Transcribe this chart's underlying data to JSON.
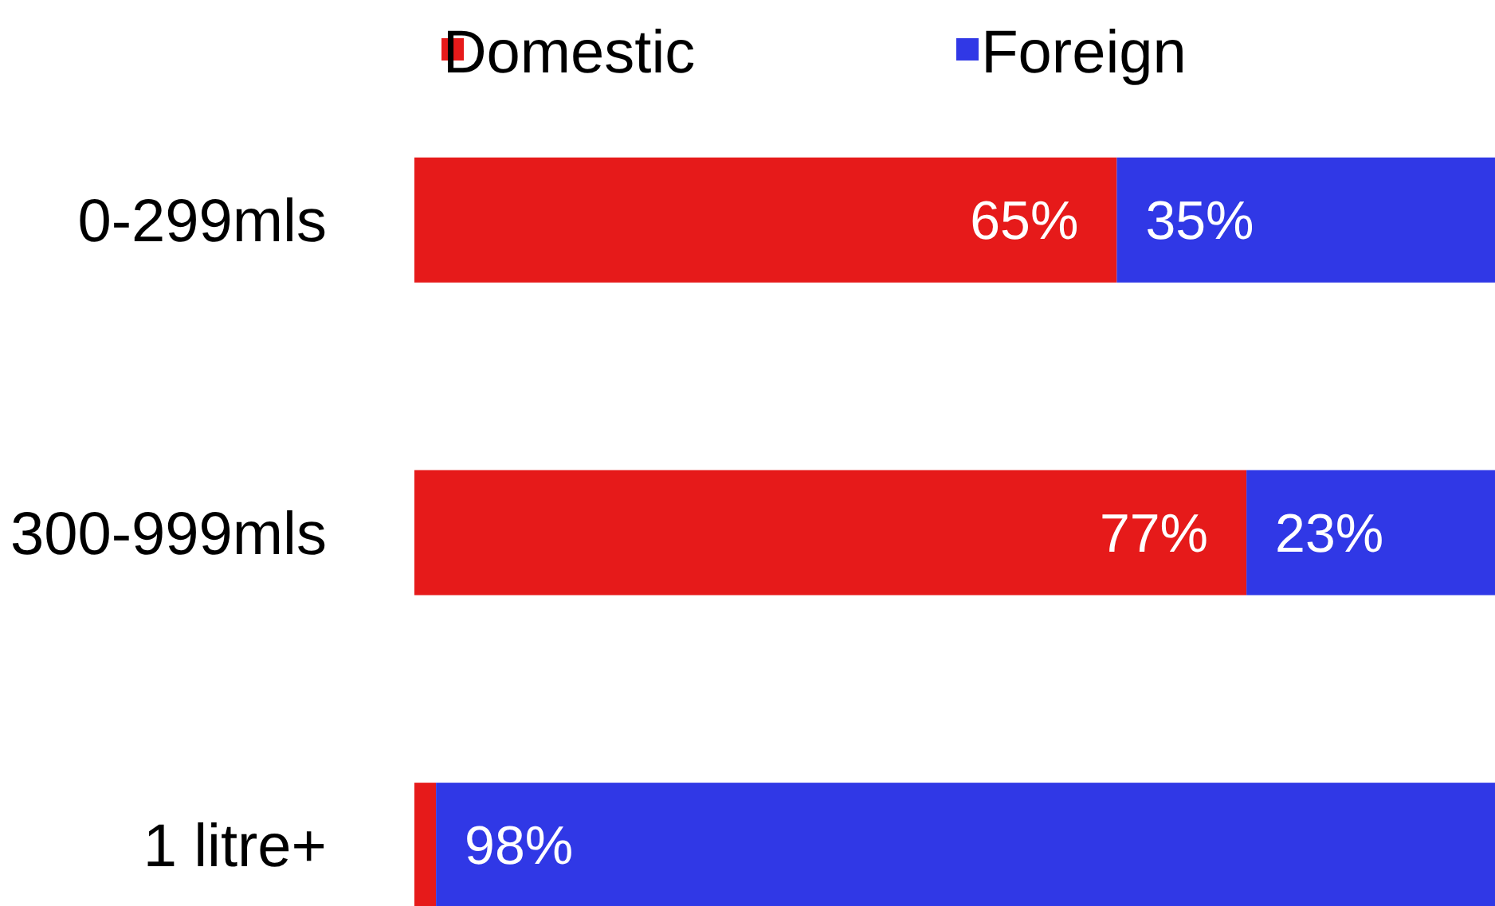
{
  "chart_data": {
    "type": "bar",
    "orientation": "horizontal",
    "stacked": true,
    "categories": [
      "0-299mls",
      "300-999mls",
      "1 litre+"
    ],
    "series": [
      {
        "name": "Domestic",
        "color": "#e61a1a",
        "values": [
          65,
          77,
          2
        ],
        "value_labels": [
          "65%",
          "77%",
          null
        ]
      },
      {
        "name": "Foreign",
        "color": "#3038e6",
        "values": [
          35,
          23,
          98
        ],
        "value_labels": [
          "35%",
          "23%",
          "98%"
        ]
      }
    ],
    "xlim": [
      0,
      100
    ],
    "legend": "top"
  }
}
